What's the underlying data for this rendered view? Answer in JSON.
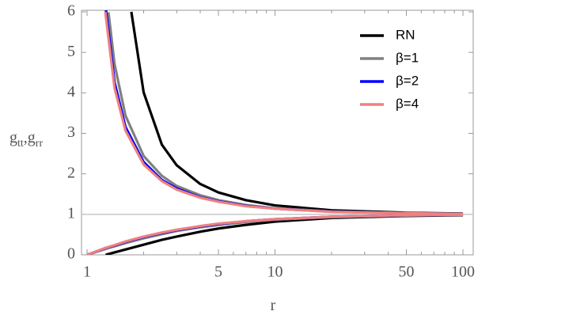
{
  "chart_data": {
    "type": "line",
    "xlabel": "r",
    "ylabel": [
      {
        "text": "g",
        "sub": "tt"
      },
      {
        "text": ",g",
        "sub": "rr"
      }
    ],
    "xscale": "log",
    "xlim": [
      0.934,
      113.4
    ],
    "ylim": [
      0,
      6
    ],
    "xticks": [
      1,
      5,
      10,
      50,
      100
    ],
    "xminorticks": [
      2,
      3,
      4,
      6,
      7,
      8,
      9,
      20,
      30,
      40,
      60,
      70,
      80,
      90
    ],
    "yticks": [
      0,
      1,
      2,
      3,
      4,
      5,
      6
    ],
    "reference_line": 1,
    "legend": "upper right",
    "series": [
      {
        "name": "RN",
        "color": "#000000",
        "branches": [
          {
            "x": [
              1.72,
              2,
              2.5,
              3,
              4,
              5,
              7,
              10,
              20,
              50,
              100
            ],
            "values": [
              6.0,
              4.01,
              2.72,
              2.21,
              1.75,
              1.54,
              1.35,
              1.22,
              1.1,
              1.04,
              1.02
            ]
          },
          {
            "x": [
              1.255,
              1.4,
              1.72,
              2,
              2.5,
              3,
              4,
              5,
              7,
              10,
              20,
              50,
              100
            ],
            "values": [
              0,
              0.06,
              0.17,
              0.25,
              0.37,
              0.45,
              0.57,
              0.65,
              0.74,
              0.82,
              0.91,
              0.96,
              0.98
            ]
          }
        ]
      },
      {
        "name": "β=1",
        "color": "#808080",
        "branches": [
          {
            "x": [
              1.3,
              1.4,
              1.6,
              2,
              2.5,
              3,
              4,
              5,
              7,
              10,
              20,
              50,
              100
            ],
            "values": [
              5.99,
              4.71,
              3.44,
              2.44,
              1.95,
              1.7,
              1.47,
              1.35,
              1.23,
              1.15,
              1.072,
              1.028,
              1.014
            ]
          },
          {
            "x": [
              1,
              1.3,
              1.4,
              1.6,
              2,
              2.5,
              3,
              4,
              5,
              7,
              10,
              20,
              50,
              100
            ],
            "values": [
              0,
              0.17,
              0.21,
              0.29,
              0.41,
              0.51,
              0.59,
              0.68,
              0.74,
              0.81,
              0.87,
              0.93,
              0.97,
              0.99
            ]
          }
        ]
      },
      {
        "name": "β=2",
        "color": "#0000ff",
        "branches": [
          {
            "x": [
              1.26,
              1.4,
              1.6,
              2,
              2.5,
              3,
              4,
              5,
              7,
              10,
              20,
              50,
              100
            ],
            "values": [
              6.05,
              4.26,
              3.16,
              2.29,
              1.85,
              1.64,
              1.42,
              1.32,
              1.21,
              1.14,
              1.066,
              1.026,
              1.013
            ]
          },
          {
            "x": [
              1,
              1.26,
              1.4,
              1.6,
              2,
              2.5,
              3,
              4,
              5,
              7,
              10,
              20,
              50,
              100
            ],
            "values": [
              0,
              0.17,
              0.23,
              0.32,
              0.44,
              0.54,
              0.61,
              0.7,
              0.76,
              0.83,
              0.88,
              0.94,
              0.98,
              0.99
            ]
          }
        ]
      },
      {
        "name": "β=4",
        "color": "#f08080",
        "branches": [
          {
            "x": [
              1.25,
              1.4,
              1.6,
              2,
              2.5,
              3,
              4,
              5,
              7,
              10,
              20,
              50,
              100
            ],
            "values": [
              6.0,
              4.12,
              3.07,
              2.23,
              1.82,
              1.61,
              1.41,
              1.31,
              1.2,
              1.14,
              1.06,
              1.03,
              1.01
            ]
          },
          {
            "x": [
              1,
              1.25,
              1.4,
              1.6,
              2,
              2.5,
              3,
              4,
              5,
              7,
              10,
              20,
              50,
              100
            ],
            "values": [
              0,
              0.17,
              0.24,
              0.33,
              0.45,
              0.55,
              0.62,
              0.71,
              0.77,
              0.83,
              0.88,
              0.94,
              0.98,
              0.99
            ]
          }
        ]
      }
    ]
  }
}
